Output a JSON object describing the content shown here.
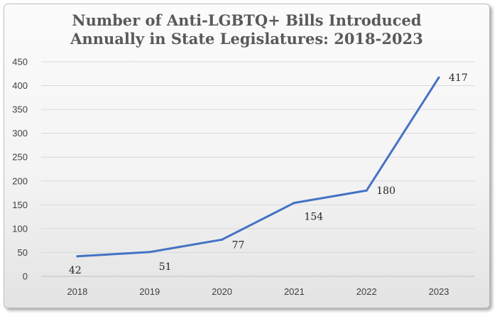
{
  "chart_data": {
    "type": "line",
    "title_lines": [
      "Number of Anti-LGBTQ+ Bills Introduced",
      "Annually in State Legislatures: 2018-2023"
    ],
    "categories": [
      "2018",
      "2019",
      "2020",
      "2021",
      "2022",
      "2023"
    ],
    "values": [
      42,
      51,
      77,
      154,
      180,
      417
    ],
    "data_labels": [
      "42",
      "51",
      "77",
      "154",
      "180",
      "417"
    ],
    "y_ticks": [
      "0",
      "50",
      "100",
      "150",
      "200",
      "250",
      "300",
      "350",
      "400",
      "450"
    ],
    "ylim": [
      0,
      450
    ],
    "grid": true,
    "legend": "none",
    "line_color": "#4472c4"
  }
}
